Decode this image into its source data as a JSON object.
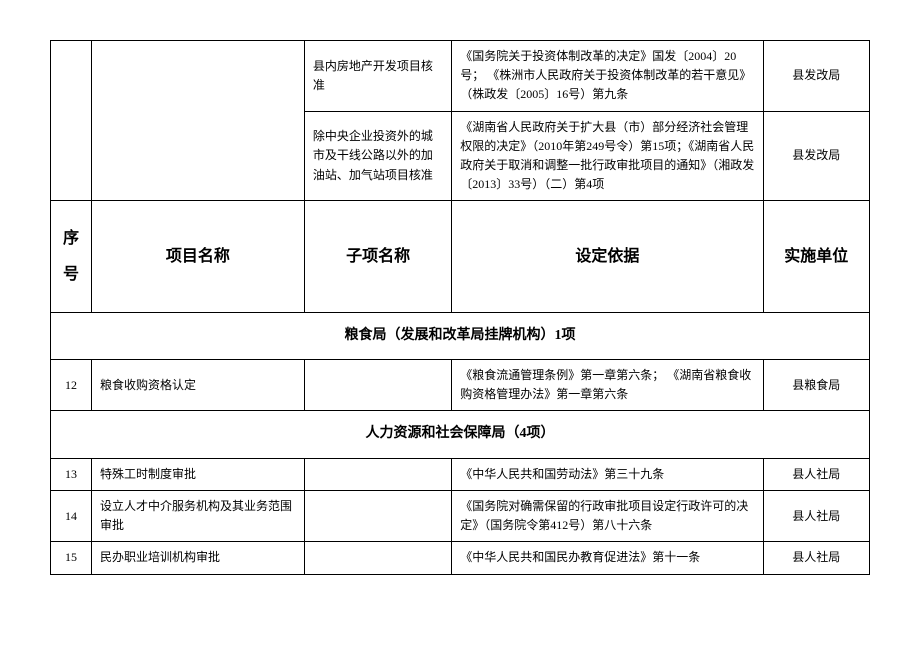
{
  "top_rows": [
    {
      "sub": "县内房地产开发项目核准",
      "basis": "《国务院关于投资体制改革的决定》国发〔2004〕20号；\n《株洲市人民政府关于投资体制改革的若干意见》（株政发〔2005〕16号）第九条",
      "unit": "县发改局"
    },
    {
      "sub": "除中央企业投资外的城市及干线公路以外的加油站、加气站项目核准",
      "basis": "《湖南省人民政府关于扩大县（市）部分经济社会管理权限的决定》（2010年第249号令）第15项；《湖南省人民政府关于取消和调整一批行政审批项目的通知》（湘政发〔2013〕33号）（二）第4项",
      "unit": "县发改局"
    }
  ],
  "headers": {
    "num": "序号",
    "name": "项目名称",
    "sub": "子项名称",
    "basis": "设定依据",
    "unit": "实施单位"
  },
  "sections": [
    {
      "title": "粮食局（发展和改革局挂牌机构）1项",
      "rows": [
        {
          "num": "12",
          "name": "粮食收购资格认定",
          "sub": "",
          "basis": "《粮食流通管理条例》第一章第六条；\n《湖南省粮食收购资格管理办法》第一章第六条",
          "unit": "县粮食局"
        }
      ]
    },
    {
      "title": "人力资源和社会保障局（4项）",
      "rows": [
        {
          "num": "13",
          "name": "特殊工时制度审批",
          "sub": "",
          "basis": "《中华人民共和国劳动法》第三十九条",
          "unit": "县人社局"
        },
        {
          "num": "14",
          "name": "设立人才中介服务机构及其业务范围审批",
          "sub": "",
          "basis": "《国务院对确需保留的行政审批项目设定行政许可的决定》（国务院令第412号）第八十六条",
          "unit": "县人社局"
        },
        {
          "num": "15",
          "name": "民办职业培训机构审批",
          "sub": "",
          "basis": "《中华人民共和国民办教育促进法》第十一条",
          "unit": "县人社局"
        }
      ]
    }
  ]
}
